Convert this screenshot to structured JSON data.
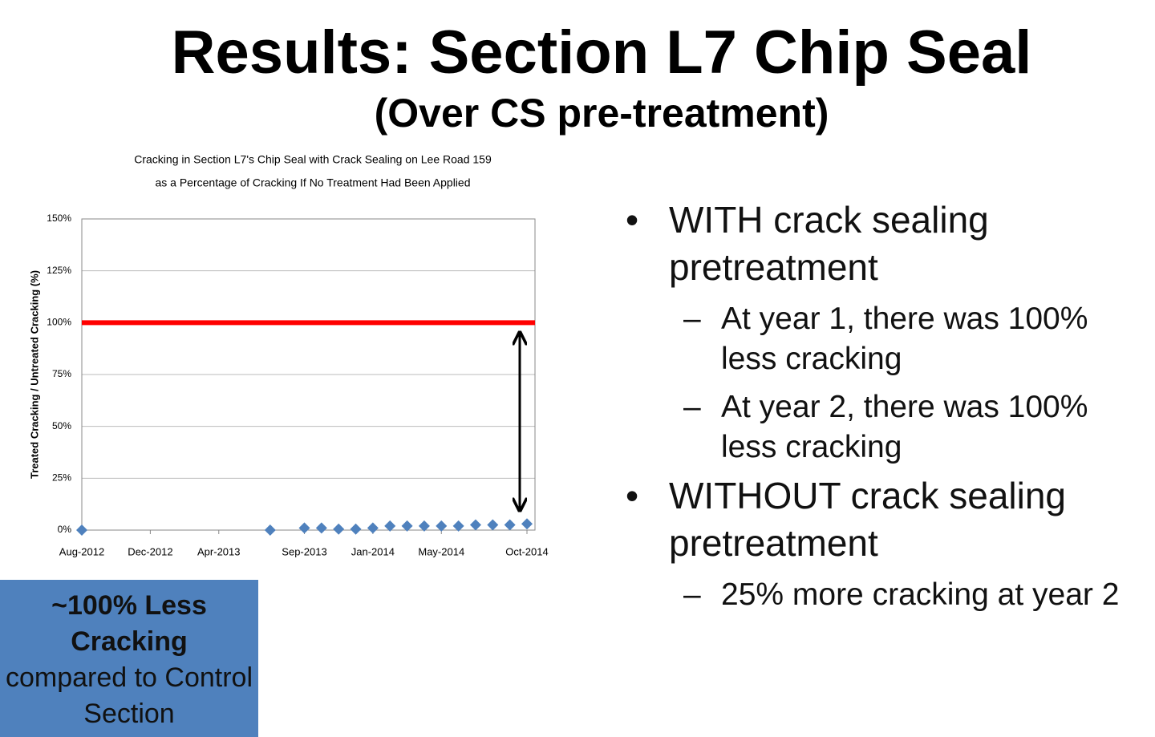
{
  "slide": {
    "title": "Results: Section L7 Chip Seal",
    "subtitle": "(Over CS pre-treatment)",
    "bullets": [
      {
        "text": "WITH crack sealing pretreatment",
        "sub": [
          "At year 1, there was 100% less cracking",
          "At year 2, there was 100% less cracking"
        ]
      },
      {
        "text": "WITHOUT crack sealing pretreatment",
        "sub": [
          "25% more cracking at year 2"
        ]
      }
    ],
    "callout": {
      "bold": "~100% Less Cracking",
      "text": "compared to Control Section"
    }
  },
  "chart_data": {
    "type": "scatter",
    "title": [
      "Cracking in Section L7's Chip Seal with Crack Sealing on Lee Road 159",
      "as a Percentage of Cracking If No Treatment Had Been Applied"
    ],
    "y_label": "Treated Cracking / Untreated Cracking (%)",
    "x": [
      "2012-08",
      "2013-07",
      "2013-09",
      "2013-10",
      "2013-11",
      "2013-12",
      "2014-01",
      "2014-02",
      "2014-03",
      "2014-04",
      "2014-05",
      "2014-06",
      "2014-07",
      "2014-08",
      "2014-09",
      "2014-10"
    ],
    "values": [
      0,
      0,
      1,
      1,
      0.5,
      0.5,
      1,
      2,
      2,
      2,
      2,
      2,
      2.5,
      2.5,
      2.5,
      3
    ],
    "color": "#4f81bd",
    "xlim": [
      "2012-08",
      "2014-10"
    ],
    "xticks": [
      {
        "value": "2012-08",
        "label": "Aug-2012"
      },
      {
        "value": "2012-12",
        "label": "Dec-2012"
      },
      {
        "value": "2013-04",
        "label": "Apr-2013"
      },
      {
        "value": "2013-09",
        "label": "Sep-2013"
      },
      {
        "value": "2014-01",
        "label": "Jan-2014"
      },
      {
        "value": "2014-05",
        "label": "May-2014"
      },
      {
        "value": "2014-10",
        "label": "Oct-2014"
      }
    ],
    "ylim": [
      0,
      150
    ],
    "yticks": [
      {
        "value": 0,
        "label": "0%"
      },
      {
        "value": 25,
        "label": "25%"
      },
      {
        "value": 50,
        "label": "50%"
      },
      {
        "value": 75,
        "label": "75%"
      },
      {
        "value": 100,
        "label": "100%"
      },
      {
        "value": 125,
        "label": "125%"
      },
      {
        "value": 150,
        "label": "150%"
      }
    ],
    "grid": true,
    "reference_line": {
      "value": 100,
      "color": "#ff0000"
    }
  }
}
